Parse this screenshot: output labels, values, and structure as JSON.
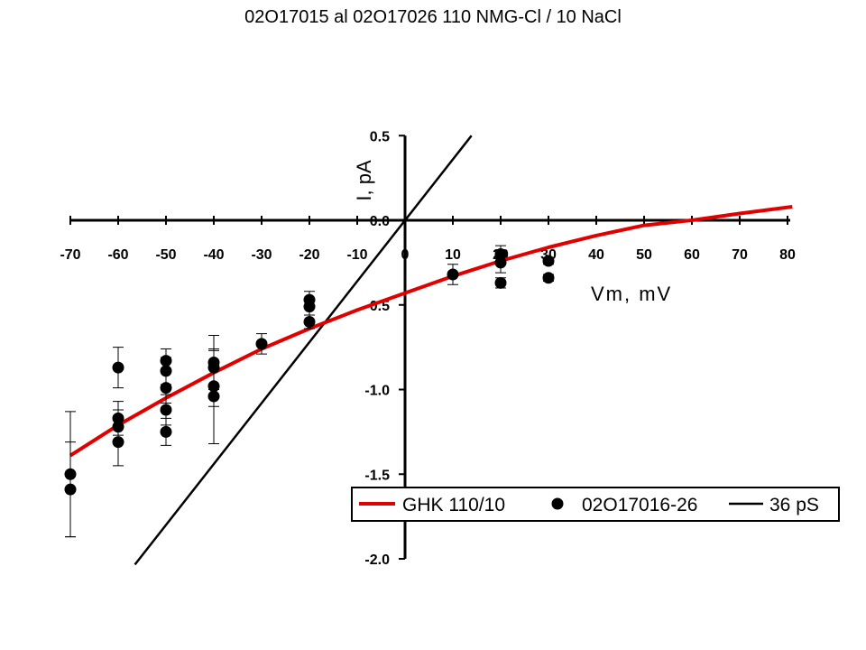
{
  "chart_data": {
    "type": "scatter",
    "title": "02O17015 al 02O17026   110 NMG-Cl / 10 NaCl",
    "xlabel": "Vm, mV",
    "ylabel": "I, pA",
    "xlim": [
      -70,
      80
    ],
    "ylim": [
      -2.0,
      0.5
    ],
    "x_ticks": [
      "-70",
      "-60",
      "-50",
      "-40",
      "-30",
      "-20",
      "-10",
      "0",
      "10",
      "20",
      "30",
      "40",
      "50",
      "60",
      "70",
      "80"
    ],
    "y_ticks": [
      "0.5",
      "0.0",
      "-0.5",
      "-1.0",
      "-1.5",
      "-2.0"
    ],
    "legend_position": "bottom-right",
    "series": [
      {
        "name": "GHK 110/10",
        "kind": "line",
        "color": "#e00000",
        "x": [
          -70,
          -60,
          -50,
          -40,
          -30,
          -20,
          -10,
          0,
          10,
          20,
          30,
          40,
          50,
          60,
          70,
          81
        ],
        "y": [
          -1.39,
          -1.21,
          -1.05,
          -0.9,
          -0.76,
          -0.64,
          -0.53,
          -0.43,
          -0.33,
          -0.24,
          -0.16,
          -0.09,
          -0.03,
          0.0,
          0.04,
          0.08
        ]
      },
      {
        "name": "02O17016-26",
        "kind": "scatter",
        "color": "#000000",
        "points": [
          {
            "x": -70,
            "y": -1.5,
            "err": 0.37
          },
          {
            "x": -70,
            "y": -1.59,
            "err": 0.28
          },
          {
            "x": -60,
            "y": -0.87,
            "err": 0.12
          },
          {
            "x": -60,
            "y": -1.17,
            "err": 0.1
          },
          {
            "x": -60,
            "y": -1.22,
            "err": 0.1
          },
          {
            "x": -60,
            "y": -1.31,
            "err": 0.14
          },
          {
            "x": -50,
            "y": -0.83,
            "err": 0.07
          },
          {
            "x": -50,
            "y": -0.89,
            "err": 0.08
          },
          {
            "x": -50,
            "y": -0.99,
            "err": 0.09
          },
          {
            "x": -50,
            "y": -1.12,
            "err": 0.09
          },
          {
            "x": -50,
            "y": -1.25,
            "err": 0.08
          },
          {
            "x": -40,
            "y": -0.84,
            "err": 0.16
          },
          {
            "x": -40,
            "y": -0.87,
            "err": 0.1
          },
          {
            "x": -40,
            "y": -0.98,
            "err": 0.12
          },
          {
            "x": -40,
            "y": -1.04,
            "err": 0.28
          },
          {
            "x": -30,
            "y": -0.73,
            "err": 0.06
          },
          {
            "x": -20,
            "y": -0.47,
            "err": 0.05
          },
          {
            "x": -20,
            "y": -0.51,
            "err": 0.05
          },
          {
            "x": -20,
            "y": -0.6,
            "err": 0.04
          },
          {
            "x": 10,
            "y": -0.32,
            "err": 0.06
          },
          {
            "x": 20,
            "y": -0.2,
            "err": 0.05
          },
          {
            "x": 20,
            "y": -0.25,
            "err": 0.06
          },
          {
            "x": 20,
            "y": -0.37,
            "err": 0.03
          },
          {
            "x": 30,
            "y": -0.24,
            "err": 0.02
          },
          {
            "x": 30,
            "y": -0.34,
            "err": 0.02
          }
        ]
      },
      {
        "name": "36 pS",
        "kind": "line",
        "color": "#000000",
        "slope_pA_per_mV": 0.036,
        "x": [
          -56.5,
          13.9
        ],
        "y": [
          -2.034,
          0.5
        ]
      }
    ]
  }
}
